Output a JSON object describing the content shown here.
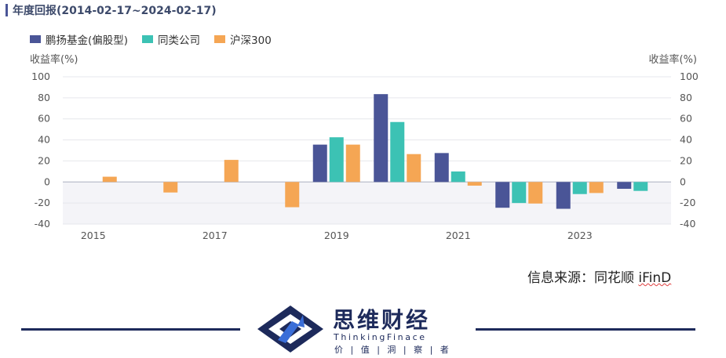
{
  "header": {
    "title": "年度回报(2014-02-17~2024-02-17)"
  },
  "colors": {
    "accent": "#4a5597",
    "series1": "#4a5597",
    "series2": "#3cc2b4",
    "series3": "#f5a654",
    "brand": "#1d2a5b"
  },
  "chart_data": {
    "type": "bar",
    "categories": [
      "2015",
      "2016",
      "2017",
      "2018",
      "2019",
      "2020",
      "2021",
      "2022",
      "2023",
      "2024"
    ],
    "x_tick_labels": [
      "2015",
      "2017",
      "2019",
      "2021",
      "2023"
    ],
    "series": [
      {
        "name": "鹏扬基金(偏股型)",
        "color": "#4a5597",
        "values": [
          null,
          null,
          null,
          null,
          35.5,
          83.5,
          27.5,
          -24.5,
          -25.5,
          -6.5
        ]
      },
      {
        "name": "同类公司",
        "color": "#3cc2b4",
        "values": [
          null,
          null,
          null,
          null,
          42.5,
          57,
          10,
          -20,
          -11.5,
          -8.5
        ]
      },
      {
        "name": "沪深300",
        "color": "#f5a654",
        "values": [
          5,
          -10,
          21,
          -24,
          35.5,
          26.5,
          -3.5,
          -20.5,
          -10.5,
          null
        ]
      }
    ],
    "ylim": [
      -40,
      100
    ],
    "yticks": [
      100,
      80,
      60,
      40,
      20,
      0,
      -20,
      -40
    ],
    "ylabel_left": "收益率(%)",
    "ylabel_right": "收益率(%)",
    "legend_position": "top-left",
    "grid": true
  },
  "source": {
    "label": "信息来源：同花顺 ",
    "brand": "iFinD"
  },
  "logo": {
    "name": "思维财经",
    "english": "ThinkingFinace",
    "slogan": "价 | 值 | 洞 | 察 | 者",
    "icon": "thinkingfinance-logo-icon"
  }
}
